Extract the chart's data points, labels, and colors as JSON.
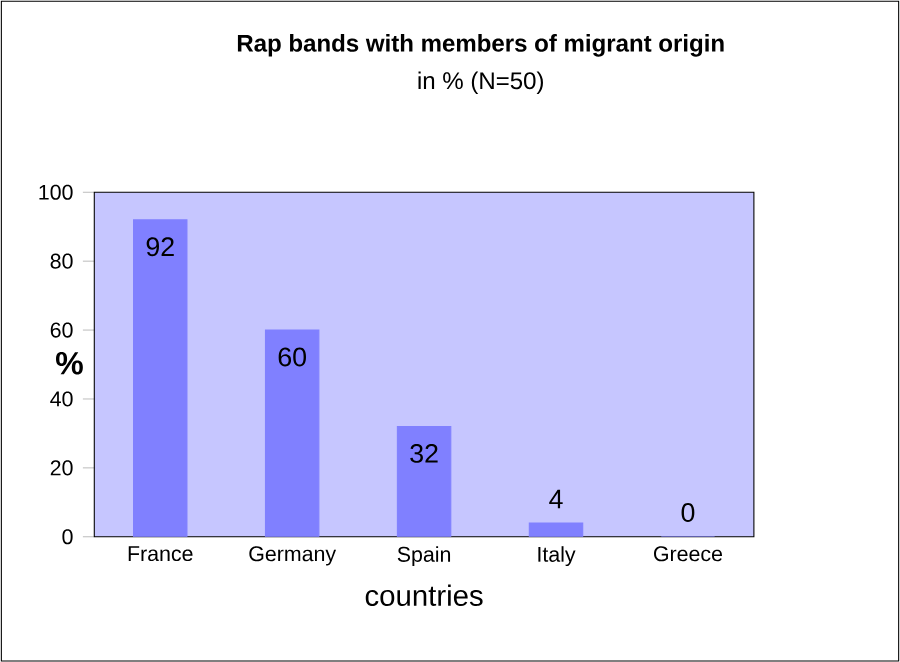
{
  "chart_data": {
    "type": "bar",
    "title": "Rap bands with members of migrant origin",
    "subtitle": "in % (N=50)",
    "xlabel": "countries",
    "ylabel": "%",
    "categories": [
      "France",
      "Germany",
      "Spain",
      "Italy",
      "Greece"
    ],
    "values": [
      92,
      60,
      32,
      4,
      0
    ],
    "color": "#8080ff",
    "ylim": [
      0,
      100
    ],
    "yticks": [
      0,
      20,
      40,
      60,
      80,
      100
    ],
    "data_labels": true
  }
}
